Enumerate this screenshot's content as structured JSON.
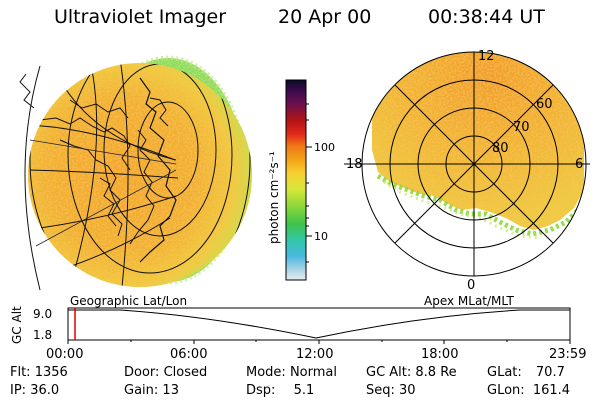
{
  "header": {
    "instrument": "Ultraviolet Imager",
    "date": "20 Apr 00",
    "time": "00:38:44 UT"
  },
  "colorbar": {
    "unit_label": "photon cm⁻²s⁻¹",
    "ticks": [
      "100",
      "10"
    ],
    "colors": [
      "#0b0b2a",
      "#3a0a4a",
      "#6a1050",
      "#b01414",
      "#e0281a",
      "#f07818",
      "#f4a418",
      "#f6d234",
      "#d6e63a",
      "#8ed83a",
      "#3ec24a",
      "#32c8a8",
      "#48b8e0",
      "#a0d0e6",
      "#e6ecef"
    ]
  },
  "polar_plot": {
    "lat_labels": [
      "60",
      "70",
      "80"
    ],
    "mlt_labels": {
      "top": "12",
      "left": "18",
      "right": "6",
      "bottom": "0"
    }
  },
  "altitude_plot": {
    "ylabel": "GC Alt",
    "y_ticks": [
      "9.0",
      "1.8"
    ],
    "left_title": "Geographic Lat/Lon",
    "right_title": "Apex MLat/MLT",
    "x_ticks": [
      "00:00",
      "06:00",
      "12:00",
      "18:00",
      "23:59"
    ]
  },
  "status": {
    "flt_label": "Flt:",
    "flt_value": "1356",
    "door_label": "Door:",
    "door_value": "Closed",
    "mode_label": "Mode:",
    "mode_value": "Normal",
    "gcalt_label": "GC Alt:",
    "gcalt_value": "8.8 Re",
    "glat_label": "GLat:",
    "glat_value": "70.7",
    "ip_label": "IP:",
    "ip_value": "36.0",
    "gain_label": "Gain:",
    "gain_value": "13",
    "dsp_label": "Dsp:",
    "dsp_value": "5.1",
    "seq_label": "Seq:",
    "seq_value": "30",
    "glon_label": "GLon:",
    "glon_value": "161.4"
  }
}
